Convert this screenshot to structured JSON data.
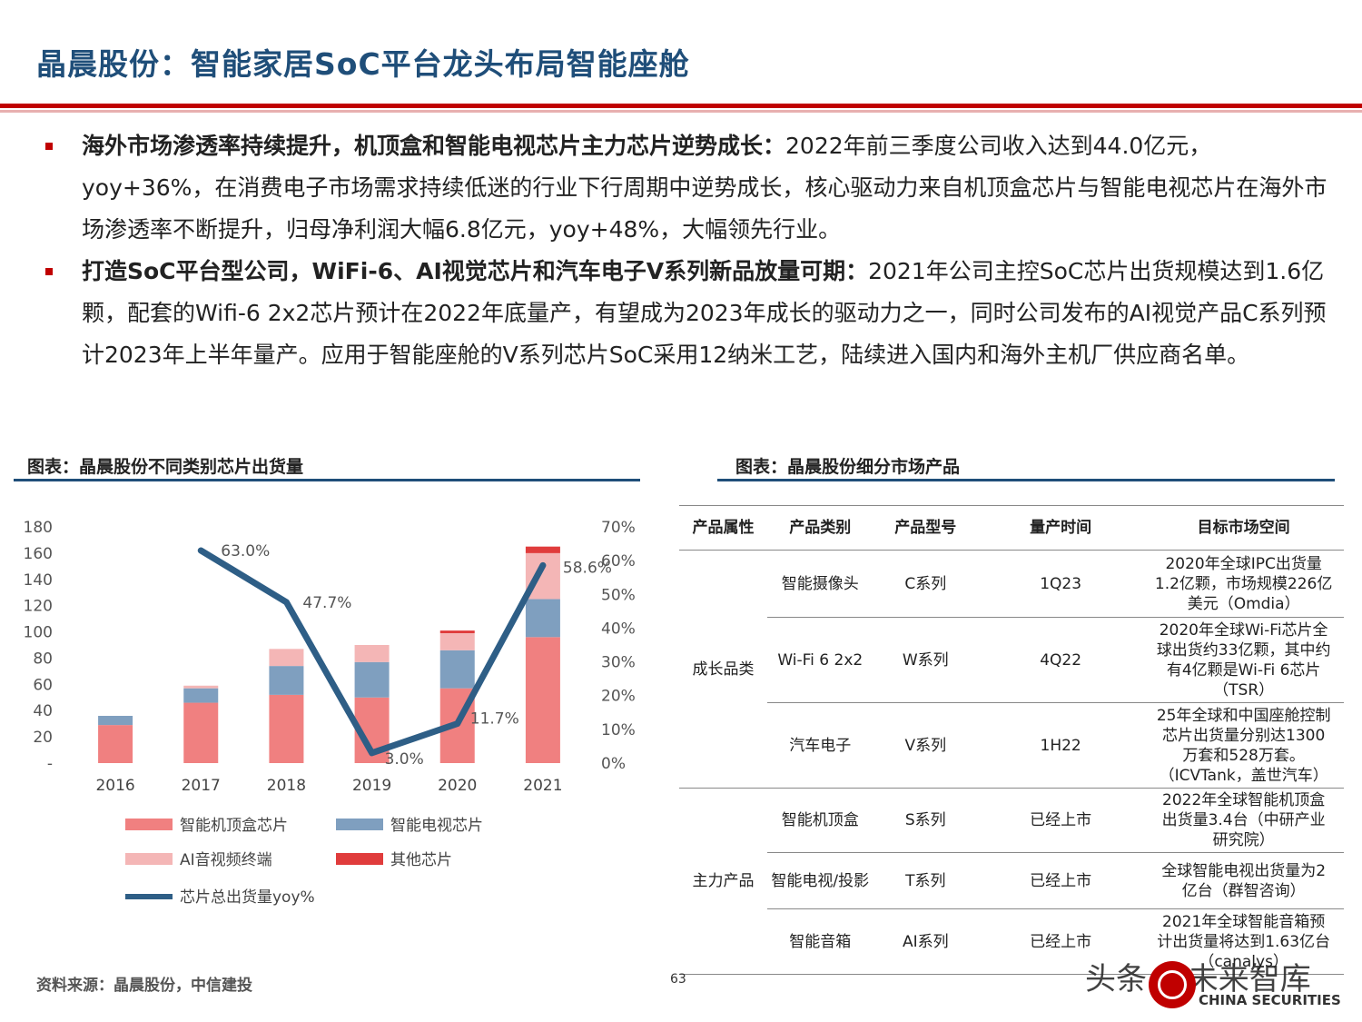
{
  "title": "晶晨股份：智能家居SoC平台龙头布局智能座舱",
  "bullets": [
    {
      "bold": "海外市场渗透率持续提升，机顶盒和智能电视芯片主力芯片逆势成长：",
      "text": "2022年前三季度公司收入达到44.0亿元，yoy+36%，在消费电子市场需求持续低迷的行业下行周期中逆势成长，核心驱动力来自机顶盒芯片与智能电视芯片在海外市场渗透率不断提升，归母净利润大幅6.8亿元，yoy+48%，大幅领先行业。"
    },
    {
      "bold": "打造SoC平台型公司，WiFi-6、AI视觉芯片和汽车电子V系列新品放量可期：",
      "text": "2021年公司主控SoC芯片出货规模达到1.6亿颗，配套的Wifi-6 2x2芯片预计在2022年底量产，有望成为2023年成长的驱动力之一，同时公司发布的AI视觉产品C系列预计2023年上半年量产。应用于智能座舱的V系列芯片SoC采用12纳米工艺，陆续进入国内和海外主机厂供应商名单。"
    }
  ],
  "chart_title": "图表：晶晨股份不同类别芯片出货量",
  "table_title": "图表：晶晨股份细分市场产品",
  "chart_data": {
    "type": "bar",
    "stacked": true,
    "categories": [
      "2016",
      "2017",
      "2018",
      "2019",
      "2020",
      "2021"
    ],
    "series": [
      {
        "name": "智能机顶盒芯片",
        "values": [
          29,
          46,
          52,
          50,
          57,
          96
        ],
        "color": "#f08080"
      },
      {
        "name": "智能电视芯片",
        "values": [
          7,
          11,
          22,
          27,
          29,
          29
        ],
        "color": "#7f9fbf"
      },
      {
        "name": "AI音视频终端",
        "values": [
          0,
          2,
          13,
          13,
          13,
          35
        ],
        "color": "#f4b6b6"
      },
      {
        "name": "其他芯片",
        "values": [
          0,
          0,
          0,
          0,
          2,
          5
        ],
        "color": "#e03c3c"
      }
    ],
    "line": {
      "name": "芯片总出货量yoy%",
      "x": [
        "2017",
        "2018",
        "2019",
        "2020",
        "2021"
      ],
      "values": [
        63.0,
        47.7,
        3.0,
        11.7,
        58.6
      ],
      "labels": [
        "63.0%",
        "47.7%",
        "3.0%",
        "11.7%",
        "58.6%"
      ],
      "color": "#2e5e86"
    },
    "y_ticks": [
      "180",
      "160",
      "140",
      "120",
      "100",
      "80",
      "60",
      "40",
      "20",
      "-"
    ],
    "y2_ticks": [
      "70%",
      "60%",
      "50%",
      "40%",
      "30%",
      "20%",
      "10%",
      "0%"
    ],
    "ylim": [
      0,
      180
    ],
    "y2lim": [
      0,
      70
    ],
    "legend_position": "bottom"
  },
  "table": {
    "headers": [
      "产品属性",
      "产品类别",
      "产品型号",
      "量产时间",
      "目标市场空间"
    ],
    "groups": [
      {
        "attr": "成长品类",
        "rows": [
          {
            "category": "智能摄像头",
            "model": "C系列",
            "time": "1Q23",
            "market": [
              "2020年全球IPC出货量",
              "1.2亿颗，市场规模226亿",
              "美元（Omdia）"
            ]
          },
          {
            "category": "Wi-Fi 6 2x2",
            "model": "W系列",
            "time": "4Q22",
            "market": [
              "2020年全球Wi-Fi芯片全",
              "球出货约33亿颗，其中约",
              "有4亿颗是Wi-Fi 6芯片",
              "（TSR）"
            ]
          },
          {
            "category": "汽车电子",
            "model": "V系列",
            "time": "1H22",
            "market": [
              "25年全球和中国座舱控制",
              "芯片出货量分别达1300",
              "万套和528万套。",
              "（ICVTank，盖世汽车）"
            ]
          }
        ]
      },
      {
        "attr": "主力产品",
        "rows": [
          {
            "category": "智能机顶盒",
            "model": "S系列",
            "time": "已经上市",
            "market": [
              "2022年全球智能机顶盒",
              "出货量3.4台（中研产业",
              "研究院）"
            ]
          },
          {
            "category": "智能电视/投影",
            "model": "T系列",
            "time": "已经上市",
            "market": [
              "全球智能电视出货量为2",
              "亿台（群智咨询）"
            ]
          },
          {
            "category": "智能音箱",
            "model": "AI系列",
            "time": "已经上市",
            "market": [
              "2021年全球智能音箱预",
              "计出货量将达到1.63亿台",
              "（canalys）"
            ]
          }
        ]
      }
    ]
  },
  "source": "资料来源：晶晨股份，中信建投",
  "page_number": "63",
  "watermark": "头条 @未来智库",
  "brand": "CHINA SECURITIES"
}
